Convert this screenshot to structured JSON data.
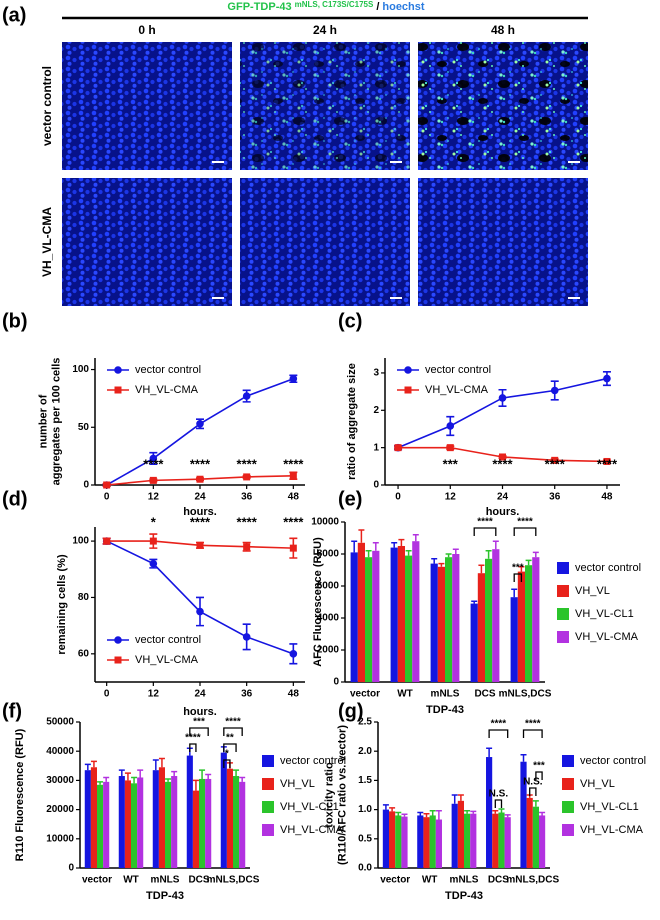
{
  "panel_a": {
    "label": "(a)",
    "title": "GFP-TDP-43",
    "title_superscript": "mNLS, C173S/C175S",
    "title_separator": "/",
    "title_stain": "hoechst",
    "columns": [
      "0 h",
      "24 h",
      "48 h"
    ],
    "rows": [
      "vector control",
      "VH_VL-CMA"
    ]
  },
  "chart_data": [
    {
      "type": "line",
      "panel_label": "(b)",
      "x": [
        0,
        12,
        24,
        36,
        48
      ],
      "xlim": [
        -3,
        51
      ],
      "xticks": [
        0,
        12,
        24,
        36,
        48
      ],
      "ylim": [
        0,
        110
      ],
      "yticks": [
        0,
        50,
        100
      ],
      "xlabel": "hours.",
      "ylabel": [
        "number of",
        "aggregates per 100 cells"
      ],
      "legend": "upper left",
      "series": [
        {
          "name": "vector control",
          "color": "#1515e0",
          "marker": "circle",
          "values": [
            0,
            23,
            53,
            77,
            92
          ],
          "errors": [
            1,
            5,
            4,
            5,
            3
          ]
        },
        {
          "name": "VH_VL-CMA",
          "color": "#e8221b",
          "marker": "square",
          "values": [
            0,
            4,
            5,
            7,
            8
          ],
          "errors": [
            1,
            1,
            1,
            1,
            3
          ]
        }
      ],
      "annotations": [
        "****",
        "****",
        "****",
        "****"
      ]
    },
    {
      "type": "line",
      "panel_label": "(c)",
      "x": [
        0,
        12,
        24,
        36,
        48
      ],
      "xlim": [
        -3,
        51
      ],
      "xticks": [
        0,
        12,
        24,
        36,
        48
      ],
      "ylim": [
        0,
        3.4
      ],
      "yticks": [
        0,
        1,
        2,
        3
      ],
      "xlabel": "hours.",
      "ylabel": [
        "ratio of aggregate size"
      ],
      "legend": "upper left",
      "series": [
        {
          "name": "vector control",
          "color": "#1515e0",
          "marker": "circle",
          "values": [
            1,
            1.58,
            2.33,
            2.53,
            2.85
          ],
          "errors": [
            0.05,
            0.25,
            0.22,
            0.25,
            0.18
          ]
        },
        {
          "name": "VH_VL-CMA",
          "color": "#e8221b",
          "marker": "square",
          "values": [
            1,
            1,
            0.75,
            0.66,
            0.63
          ],
          "errors": [
            0.03,
            0.04,
            0.03,
            0.03,
            0.03
          ]
        }
      ],
      "annotations": [
        "***",
        "****",
        "****",
        "****"
      ]
    },
    {
      "type": "line",
      "panel_label": "(d)",
      "x": [
        0,
        12,
        24,
        36,
        48
      ],
      "xlim": [
        -3,
        51
      ],
      "xticks": [
        0,
        12,
        24,
        36,
        48
      ],
      "ylim": [
        50,
        105
      ],
      "yticks": [
        60,
        80,
        100
      ],
      "xlabel": "hours.",
      "ylabel": [
        "remaining cells (%)"
      ],
      "legend": "lower left",
      "series": [
        {
          "name": "vector control",
          "color": "#1515e0",
          "marker": "circle",
          "values": [
            100,
            92,
            75,
            66,
            60
          ],
          "errors": [
            1,
            1.5,
            5,
            4.5,
            3.5
          ]
        },
        {
          "name": "VH_VL-CMA",
          "color": "#e8221b",
          "marker": "square",
          "values": [
            100,
            100,
            98.5,
            98,
            97.5
          ],
          "errors": [
            1,
            2.5,
            1,
            1.5,
            3.5
          ]
        }
      ],
      "annotations": [
        "*",
        "****",
        "****",
        "****"
      ]
    },
    {
      "type": "bar",
      "panel_label": "(e)",
      "categories": [
        "vector",
        "WT",
        "mNLS",
        "DCS",
        "mNLS,DCS"
      ],
      "ylim": [
        0,
        10000
      ],
      "yticks": [
        0,
        2000,
        4000,
        6000,
        8000,
        10000
      ],
      "xlabel": "TDP-43",
      "ylabel": [
        "AFC Fluorescence (RFU)"
      ],
      "legend": "right",
      "series": [
        {
          "name": "vector control",
          "color": "#1515e0",
          "values": [
            8100,
            8400,
            7400,
            4900,
            5300
          ],
          "errors": [
            700,
            300,
            300,
            150,
            500
          ]
        },
        {
          "name": "VH_VL",
          "color": "#e8221b",
          "values": [
            8700,
            8500,
            7200,
            6800,
            6900
          ],
          "errors": [
            800,
            400,
            200,
            500,
            300
          ]
        },
        {
          "name": "VH_VL-CL1",
          "color": "#2bc42b",
          "values": [
            7800,
            7900,
            7800,
            7700,
            7300
          ],
          "errors": [
            400,
            300,
            200,
            500,
            300
          ]
        },
        {
          "name": "VH_VL-CMA",
          "color": "#b232e0",
          "values": [
            8200,
            8800,
            8000,
            8300,
            7800
          ],
          "errors": [
            500,
            400,
            300,
            500,
            300
          ]
        }
      ],
      "annotations": [
        "****",
        "****",
        "***"
      ]
    },
    {
      "type": "bar",
      "panel_label": "(f)",
      "categories": [
        "vector",
        "WT",
        "mNLS",
        "DCS",
        "mNLS,DCS"
      ],
      "ylim": [
        0,
        50000
      ],
      "yticks": [
        0,
        10000,
        20000,
        30000,
        40000,
        50000
      ],
      "xlabel": "TDP-43",
      "ylabel": [
        "R110 Fluorescence (RFU)"
      ],
      "legend": "right",
      "series": [
        {
          "name": "vector control",
          "color": "#1515e0",
          "values": [
            33500,
            31500,
            33500,
            38500,
            39500
          ],
          "errors": [
            2000,
            2000,
            3500,
            2500,
            2000
          ]
        },
        {
          "name": "VH_VL",
          "color": "#e8221b",
          "values": [
            34500,
            30000,
            34500,
            26500,
            34000
          ],
          "errors": [
            2000,
            2500,
            3000,
            3500,
            2000
          ]
        },
        {
          "name": "VH_VL-CL1",
          "color": "#2bc42b",
          "values": [
            28500,
            29000,
            29500,
            30500,
            31500
          ],
          "errors": [
            1000,
            2000,
            1000,
            3000,
            2000
          ]
        },
        {
          "name": "VH_VL-CMA",
          "color": "#b232e0",
          "values": [
            29500,
            31000,
            31500,
            30500,
            29500
          ],
          "errors": [
            1500,
            2500,
            1500,
            1500,
            1500
          ]
        }
      ],
      "annotations": [
        "***",
        "****",
        "****",
        "**",
        "*"
      ]
    },
    {
      "type": "bar",
      "panel_label": "(g)",
      "categories": [
        "vector",
        "WT",
        "mNLS",
        "DCS",
        "mNLS,DCS"
      ],
      "ylim": [
        0,
        2.5
      ],
      "yticks": [
        {
          "value": 0,
          "label": "0.0"
        },
        0.5,
        {
          "value": 1,
          "label": "1.0"
        },
        1.5,
        {
          "value": 2,
          "label": "2.0"
        },
        2.5
      ],
      "xlabel": "TDP-43",
      "ylabel": [
        "toxicity ratio",
        "(R110/AFC ratio vs. vector)"
      ],
      "legend": "right",
      "series": [
        {
          "name": "vector control",
          "color": "#1515e0",
          "values": [
            1.0,
            0.9,
            1.1,
            1.9,
            1.82
          ],
          "errors": [
            0.08,
            0.05,
            0.15,
            0.15,
            0.12
          ]
        },
        {
          "name": "VH_VL",
          "color": "#e8221b",
          "values": [
            0.97,
            0.87,
            1.15,
            0.93,
            1.2
          ],
          "errors": [
            0.06,
            0.06,
            0.1,
            0.05,
            0.05
          ]
        },
        {
          "name": "VH_VL-CL1",
          "color": "#2bc42b",
          "values": [
            0.9,
            0.9,
            0.93,
            0.95,
            1.05
          ],
          "errors": [
            0.05,
            0.08,
            0.05,
            0.06,
            0.1
          ]
        },
        {
          "name": "VH_VL-CMA",
          "color": "#b232e0",
          "values": [
            0.88,
            0.83,
            0.93,
            0.87,
            0.9
          ],
          "errors": [
            0.04,
            0.15,
            0.04,
            0.04,
            0.05
          ]
        }
      ],
      "annotations": [
        "****",
        "N.S.",
        "****",
        "N.S.",
        "***"
      ]
    }
  ]
}
